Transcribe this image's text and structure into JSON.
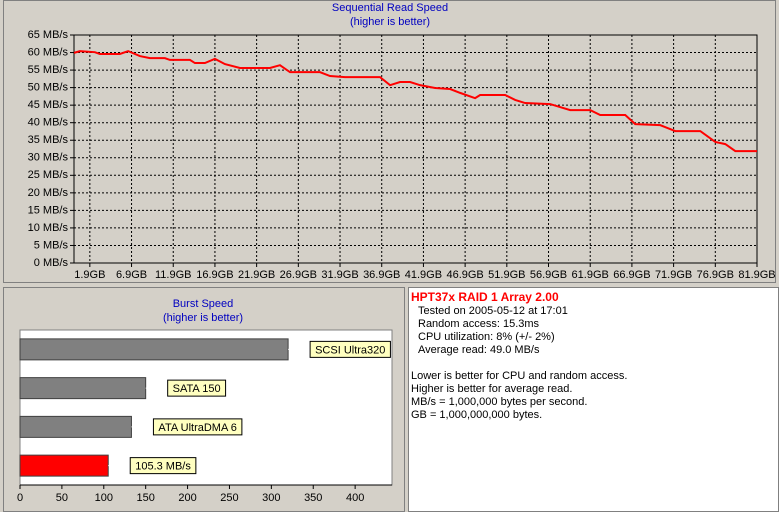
{
  "chart_data": [
    {
      "type": "line",
      "title": "Sequential Read Speed",
      "subtitle": "(higher is better)",
      "x": [
        0,
        0.7,
        2.5,
        3.1,
        5.5,
        6.5,
        7.9,
        9.1,
        10.9,
        11.5,
        13.9,
        14.5,
        15.7,
        16.9,
        18.1,
        19.9,
        23.5,
        24.7,
        25.9,
        29.5,
        30.7,
        32.5,
        36.7,
        37.9,
        39.1,
        40.3,
        41.5,
        43.3,
        45.1,
        46.3,
        48.1,
        48.7,
        51.7,
        52.9,
        54.1,
        57.1,
        59.5,
        61.9,
        63.1,
        66.1,
        67.3,
        70.3,
        72.1,
        75.1,
        76.9,
        78.1,
        79.3,
        81.9
      ],
      "series": [
        {
          "color": "#ff0000",
          "values": [
            59.9,
            60.4,
            60.1,
            59.6,
            59.6,
            60.4,
            59.0,
            58.4,
            58.4,
            57.9,
            57.9,
            57.0,
            57.0,
            58.2,
            56.7,
            55.6,
            55.6,
            56.4,
            54.4,
            54.4,
            53.3,
            53.0,
            53.0,
            50.7,
            51.6,
            51.6,
            50.7,
            49.9,
            49.6,
            48.5,
            47.0,
            47.9,
            47.9,
            46.5,
            45.6,
            45.3,
            43.6,
            43.6,
            42.2,
            42.2,
            39.6,
            39.3,
            37.6,
            37.6,
            34.5,
            33.9,
            31.9,
            31.9
          ]
        }
      ],
      "xlim": [
        0,
        81.9
      ],
      "xticks": [
        {
          "value": 1.9,
          "label": "1.9GB"
        },
        {
          "value": 6.9,
          "label": "6.9GB"
        },
        {
          "value": 11.9,
          "label": "11.9GB"
        },
        {
          "value": 16.9,
          "label": "16.9GB"
        },
        {
          "value": 21.9,
          "label": "21.9GB"
        },
        {
          "value": 26.9,
          "label": "26.9GB"
        },
        {
          "value": 31.9,
          "label": "31.9GB"
        },
        {
          "value": 36.9,
          "label": "36.9GB"
        },
        {
          "value": 41.9,
          "label": "41.9GB"
        },
        {
          "value": 46.9,
          "label": "46.9GB"
        },
        {
          "value": 51.9,
          "label": "51.9GB"
        },
        {
          "value": 56.9,
          "label": "56.9GB"
        },
        {
          "value": 61.9,
          "label": "61.9GB"
        },
        {
          "value": 66.9,
          "label": "66.9GB"
        },
        {
          "value": 71.9,
          "label": "71.9GB"
        },
        {
          "value": 76.9,
          "label": "76.9GB"
        },
        {
          "value": 81.9,
          "label": "81.9GB"
        }
      ],
      "ylim": [
        0,
        65
      ],
      "yticks": [
        {
          "value": 0,
          "label": "0 MB/s"
        },
        {
          "value": 5,
          "label": "5 MB/s"
        },
        {
          "value": 10,
          "label": "10 MB/s"
        },
        {
          "value": 15,
          "label": "15 MB/s"
        },
        {
          "value": 20,
          "label": "20 MB/s"
        },
        {
          "value": 25,
          "label": "25 MB/s"
        },
        {
          "value": 30,
          "label": "30 MB/s"
        },
        {
          "value": 35,
          "label": "35 MB/s"
        },
        {
          "value": 40,
          "label": "40 MB/s"
        },
        {
          "value": 45,
          "label": "45 MB/s"
        },
        {
          "value": 50,
          "label": "50 MB/s"
        },
        {
          "value": 55,
          "label": "55 MB/s"
        },
        {
          "value": 60,
          "label": "60 MB/s"
        },
        {
          "value": 65,
          "label": "65 MB/s"
        }
      ],
      "grid": true
    },
    {
      "type": "bar",
      "orientation": "horizontal",
      "title": "Burst Speed",
      "subtitle": "(higher is better)",
      "categories": [
        "SCSI Ultra320",
        "SATA 150",
        "ATA UltraDMA 6",
        null
      ],
      "values": [
        320,
        150,
        133,
        105.3
      ],
      "value_labels": [
        null,
        null,
        null,
        "105.3 MB/s"
      ],
      "colors": [
        "#808080",
        "#808080",
        "#808080",
        "#ff0000"
      ],
      "xlim": [
        0,
        444
      ],
      "xticks": [
        0,
        50,
        100,
        150,
        200,
        250,
        300,
        350,
        400
      ]
    }
  ],
  "info": {
    "title": "HPT37x RAID 1 Array 2.00",
    "details": [
      "Tested on 2005-05-12 at 17:01",
      "Random access: 15.3ms",
      "CPU utilization: 8% (+/- 2%)",
      "Average read: 49.0 MB/s"
    ],
    "notes": [
      "Lower is better for CPU and random access.",
      "Higher is better for average read.",
      "MB/s = 1,000,000 bytes per second.",
      "GB = 1,000,000,000 bytes."
    ]
  }
}
